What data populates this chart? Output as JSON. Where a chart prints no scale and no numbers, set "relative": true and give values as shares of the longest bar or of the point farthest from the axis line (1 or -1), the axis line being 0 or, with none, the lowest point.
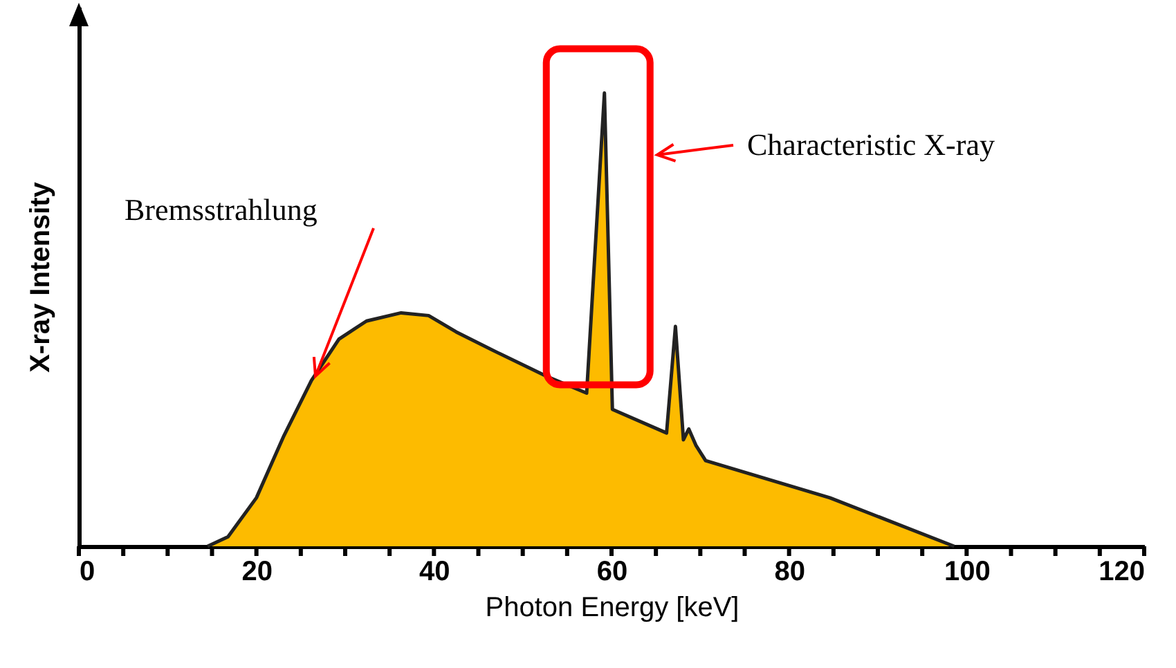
{
  "chart_data": {
    "type": "area",
    "relative": true,
    "xlabel": "Photon Energy [keV]",
    "ylabel": "X-ray Intensity",
    "xlim": [
      0,
      120
    ],
    "xticks": [
      0,
      {
        "value": 5,
        "label": null
      },
      {
        "value": 10,
        "label": null
      },
      {
        "value": 15,
        "label": null
      },
      20,
      {
        "value": 25,
        "label": null
      },
      {
        "value": 30,
        "label": null
      },
      {
        "value": 35,
        "label": null
      },
      40,
      {
        "value": 45,
        "label": null
      },
      {
        "value": 50,
        "label": null
      },
      {
        "value": 55,
        "label": null
      },
      60,
      {
        "value": 65,
        "label": null
      },
      {
        "value": 70,
        "label": null
      },
      {
        "value": 75,
        "label": null
      },
      80,
      {
        "value": 85,
        "label": null
      },
      {
        "value": 90,
        "label": null
      },
      {
        "value": 95,
        "label": null
      },
      100,
      {
        "value": 105,
        "label": null
      },
      {
        "value": 110,
        "label": null
      },
      {
        "value": 115,
        "label": null
      },
      120
    ],
    "x": [
      14.5,
      16.8,
      20,
      23.1,
      26.2,
      29.3,
      32.4,
      36.3,
      39.4,
      42.5,
      47.2,
      52.7,
      57.2,
      59.2,
      60.1,
      66.2,
      67.2,
      68.1,
      68.7,
      69.5,
      70.6,
      84.6,
      98.6
    ],
    "series": [
      {
        "color": "#fdbb00",
        "values": [
          0,
          0.021,
          0.107,
          0.244,
          0.366,
          0.457,
          0.497,
          0.515,
          0.509,
          0.473,
          0.427,
          0.375,
          0.338,
          1,
          0.302,
          0.25,
          0.485,
          0.235,
          0.259,
          0.223,
          0.189,
          0.107,
          0
        ]
      }
    ],
    "annotations": [
      "Bremsstrahlung",
      "Characteristic X-ray"
    ]
  }
}
